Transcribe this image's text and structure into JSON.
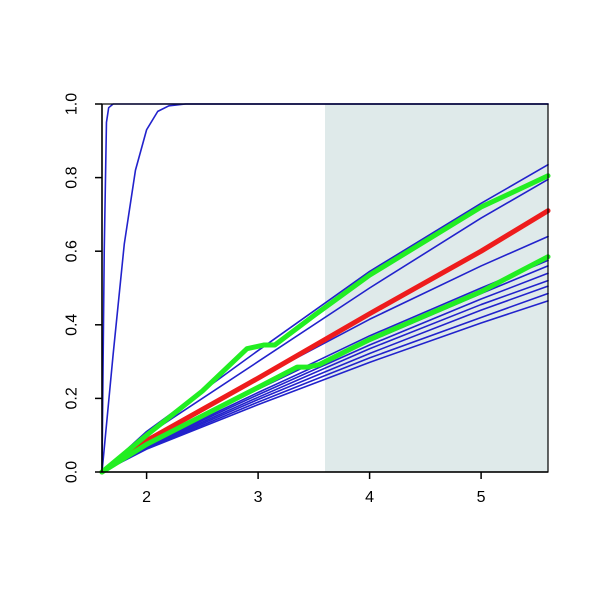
{
  "chart_data": {
    "type": "line",
    "title": "",
    "xlabel": "",
    "ylabel": "",
    "xlim": [
      1.6,
      5.6
    ],
    "ylim": [
      0.0,
      1.0
    ],
    "x_ticks": [
      2,
      3,
      4,
      5
    ],
    "x_tick_labels": [
      "2",
      "3",
      "4",
      "5"
    ],
    "y_ticks": [
      0.0,
      0.2,
      0.4,
      0.6,
      0.8,
      1.0
    ],
    "y_tick_labels": [
      "0.0",
      "0.2",
      "0.4",
      "0.6",
      "0.8",
      "1.0"
    ],
    "grid": false,
    "shaded_region": {
      "x_from": 3.6,
      "x_to": 5.6,
      "color": "#dfeaea"
    },
    "colors": {
      "blue": "#2222cc",
      "red": "#ee1c1c",
      "green": "#22ee22"
    },
    "series": [
      {
        "color": "blue",
        "style": "thin",
        "points": [
          [
            1.6,
            0.0
          ],
          [
            1.62,
            0.6
          ],
          [
            1.64,
            0.95
          ],
          [
            1.66,
            0.99
          ],
          [
            1.7,
            1.0
          ],
          [
            5.6,
            1.0
          ]
        ]
      },
      {
        "color": "blue",
        "style": "thin",
        "points": [
          [
            1.6,
            0.0
          ],
          [
            1.7,
            0.32
          ],
          [
            1.8,
            0.62
          ],
          [
            1.9,
            0.82
          ],
          [
            2.0,
            0.93
          ],
          [
            2.1,
            0.98
          ],
          [
            2.2,
            0.995
          ],
          [
            2.35,
            1.0
          ],
          [
            5.6,
            1.0
          ]
        ]
      },
      {
        "color": "blue",
        "style": "thin",
        "points": [
          [
            1.6,
            0.0
          ],
          [
            2.0,
            0.11
          ],
          [
            3.0,
            0.33
          ],
          [
            4.0,
            0.545
          ],
          [
            5.0,
            0.73
          ],
          [
            5.6,
            0.835
          ]
        ]
      },
      {
        "color": "blue",
        "style": "thin",
        "points": [
          [
            1.6,
            0.0
          ],
          [
            2.0,
            0.1
          ],
          [
            3.0,
            0.3
          ],
          [
            4.0,
            0.5
          ],
          [
            5.0,
            0.69
          ],
          [
            5.6,
            0.795
          ]
        ]
      },
      {
        "color": "blue",
        "style": "thin",
        "points": [
          [
            1.6,
            0.0
          ],
          [
            2.0,
            0.085
          ],
          [
            3.0,
            0.255
          ],
          [
            4.0,
            0.415
          ],
          [
            5.0,
            0.56
          ],
          [
            5.6,
            0.64
          ]
        ]
      },
      {
        "color": "blue",
        "style": "thin",
        "points": [
          [
            1.6,
            0.0
          ],
          [
            2.0,
            0.075
          ],
          [
            3.0,
            0.225
          ],
          [
            4.0,
            0.37
          ],
          [
            5.0,
            0.5
          ],
          [
            5.6,
            0.575
          ]
        ]
      },
      {
        "color": "blue",
        "style": "thin",
        "points": [
          [
            1.6,
            0.0
          ],
          [
            2.0,
            0.072
          ],
          [
            3.0,
            0.216
          ],
          [
            4.0,
            0.355
          ],
          [
            5.0,
            0.485
          ],
          [
            5.6,
            0.56
          ]
        ]
      },
      {
        "color": "blue",
        "style": "thin",
        "points": [
          [
            1.6,
            0.0
          ],
          [
            2.0,
            0.07
          ],
          [
            3.0,
            0.21
          ],
          [
            4.0,
            0.345
          ],
          [
            5.0,
            0.47
          ],
          [
            5.6,
            0.54
          ]
        ]
      },
      {
        "color": "blue",
        "style": "thin",
        "points": [
          [
            1.6,
            0.0
          ],
          [
            2.0,
            0.068
          ],
          [
            3.0,
            0.203
          ],
          [
            4.0,
            0.335
          ],
          [
            5.0,
            0.455
          ],
          [
            5.6,
            0.52
          ]
        ]
      },
      {
        "color": "blue",
        "style": "thin",
        "points": [
          [
            1.6,
            0.0
          ],
          [
            2.0,
            0.066
          ],
          [
            3.0,
            0.197
          ],
          [
            4.0,
            0.322
          ],
          [
            5.0,
            0.44
          ],
          [
            5.6,
            0.505
          ]
        ]
      },
      {
        "color": "blue",
        "style": "thin",
        "points": [
          [
            1.6,
            0.0
          ],
          [
            2.0,
            0.064
          ],
          [
            3.0,
            0.19
          ],
          [
            4.0,
            0.31
          ],
          [
            5.0,
            0.42
          ],
          [
            5.6,
            0.485
          ]
        ]
      },
      {
        "color": "blue",
        "style": "thin",
        "points": [
          [
            1.6,
            0.0
          ],
          [
            2.0,
            0.062
          ],
          [
            3.0,
            0.183
          ],
          [
            4.0,
            0.298
          ],
          [
            5.0,
            0.405
          ],
          [
            5.6,
            0.465
          ]
        ]
      },
      {
        "color": "red",
        "style": "thick",
        "points": [
          [
            1.6,
            0.0
          ],
          [
            2.0,
            0.085
          ],
          [
            3.0,
            0.255
          ],
          [
            4.0,
            0.43
          ],
          [
            5.0,
            0.6
          ],
          [
            5.6,
            0.71
          ]
        ]
      },
      {
        "color": "green",
        "style": "thick",
        "points": [
          [
            1.6,
            0.0
          ],
          [
            2.0,
            0.1
          ],
          [
            2.5,
            0.22
          ],
          [
            2.9,
            0.335
          ],
          [
            3.05,
            0.345
          ],
          [
            3.15,
            0.345
          ],
          [
            3.5,
            0.425
          ],
          [
            4.0,
            0.535
          ],
          [
            5.0,
            0.72
          ],
          [
            5.6,
            0.805
          ]
        ]
      },
      {
        "color": "green",
        "style": "thick",
        "points": [
          [
            1.6,
            0.0
          ],
          [
            2.0,
            0.075
          ],
          [
            3.0,
            0.23
          ],
          [
            3.35,
            0.285
          ],
          [
            3.45,
            0.285
          ],
          [
            3.55,
            0.292
          ],
          [
            4.0,
            0.36
          ],
          [
            5.0,
            0.49
          ],
          [
            5.6,
            0.585
          ]
        ]
      }
    ]
  }
}
